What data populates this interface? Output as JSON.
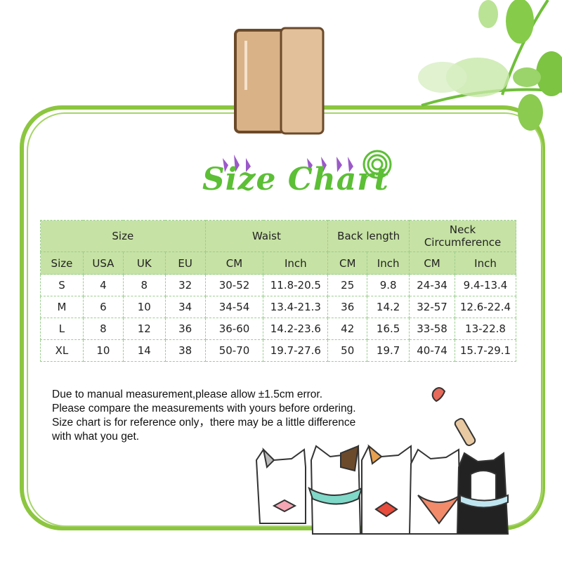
{
  "title": "Size Chart",
  "colors": {
    "frame": "#8cc63f",
    "title": "#5cbf36",
    "header_bg": "#c6e2a4",
    "hearts": "#9b59c9"
  },
  "table": {
    "group_headers": [
      "Size",
      "Waist",
      "Back length",
      "Neck Circumference"
    ],
    "sub_headers": [
      "Size",
      "USA",
      "UK",
      "EU",
      "CM",
      "Inch",
      "CM",
      "Inch",
      "CM",
      "Inch"
    ],
    "rows": [
      [
        "S",
        "4",
        "8",
        "32",
        "30-52",
        "11.8-20.5",
        "25",
        "9.8",
        "24-34",
        "9.4-13.4"
      ],
      [
        "M",
        "6",
        "10",
        "34",
        "34-54",
        "13.4-21.3",
        "36",
        "14.2",
        "32-57",
        "12.6-22.4"
      ],
      [
        "L",
        "8",
        "12",
        "36",
        "36-60",
        "14.2-23.6",
        "42",
        "16.5",
        "33-58",
        "13-22.8"
      ],
      [
        "XL",
        "10",
        "14",
        "38",
        "50-70",
        "19.7-27.6",
        "50",
        "19.7",
        "40-74",
        "15.7-29.1"
      ]
    ]
  },
  "notes": [
    "Due to manual measurement,please allow ±1.5cm error.",
    "Please compare the measurements with yours before ordering.",
    "Size chart is for reference only，there may be a little difference",
    "with what you get."
  ],
  "icons": [
    "leaves-icon",
    "clothespin-icon",
    "hearts-icon",
    "spiral-icon",
    "cats-illustration",
    "bone-icon",
    "heart-icon"
  ]
}
